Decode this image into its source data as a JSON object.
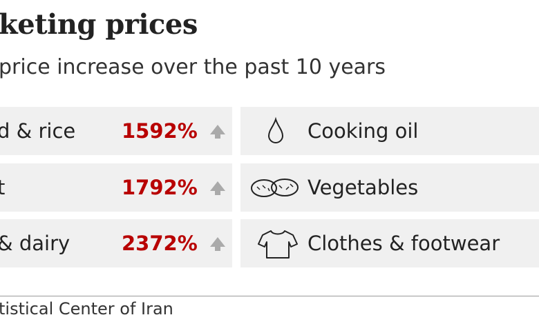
{
  "header": {
    "title": "keting prices",
    "subtitle": "price increase over the past 10 years"
  },
  "left_items": [
    {
      "label": "d & rice",
      "change": "1592%"
    },
    {
      "label": "t",
      "change": "1792%"
    },
    {
      "label": "& dairy",
      "change": "2372%"
    }
  ],
  "right_items": [
    {
      "label": "Cooking oil"
    },
    {
      "label": "Vegetables"
    },
    {
      "label": "Clothes & footwear"
    }
  ],
  "source": "tistical Center of Iran"
}
